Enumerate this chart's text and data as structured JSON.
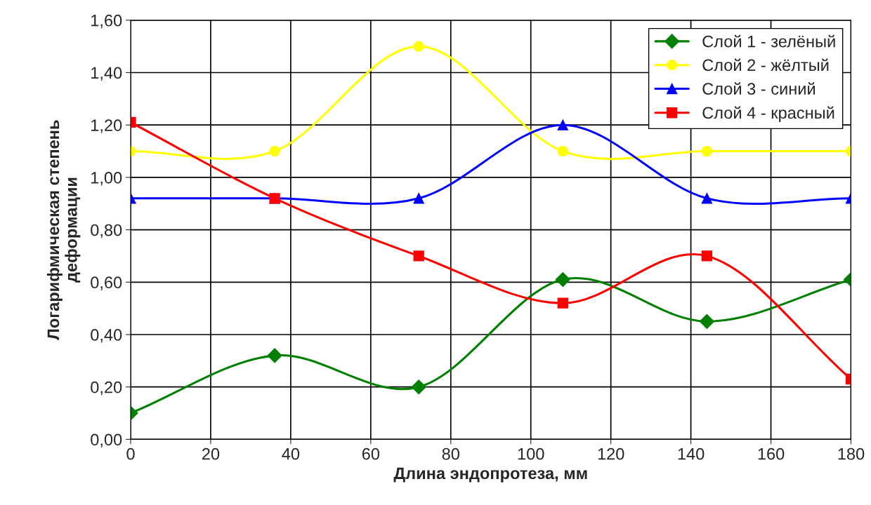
{
  "chart_data": {
    "type": "line",
    "xlabel": "Длина эндопротеза, мм",
    "ylabel": "Логарифмическая степень\nдеформации",
    "x": [
      0,
      36,
      72,
      108,
      144,
      180
    ],
    "series": [
      {
        "name": "Слой 1 - зелёный",
        "color": "#008000",
        "marker": "diamond",
        "values": [
          0.1,
          0.32,
          0.2,
          0.61,
          0.45,
          0.61
        ]
      },
      {
        "name": "Слой 2 - жёлтый",
        "color": "#ffff00",
        "marker": "circle",
        "values": [
          1.1,
          1.1,
          1.5,
          1.1,
          1.1,
          1.1
        ]
      },
      {
        "name": "Слой 3 - синий",
        "color": "#0000ff",
        "marker": "triangle",
        "values": [
          0.92,
          0.92,
          0.92,
          1.2,
          0.92,
          0.92
        ]
      },
      {
        "name": "Слой 4 - красный",
        "color": "#ff0000",
        "marker": "square",
        "values": [
          1.21,
          0.92,
          0.7,
          0.52,
          0.7,
          0.23
        ]
      }
    ],
    "xlim": [
      0,
      180
    ],
    "xticks": [
      0,
      20,
      40,
      60,
      80,
      100,
      120,
      140,
      160,
      180
    ],
    "ylim": [
      0,
      1.6
    ],
    "yticks": [
      {
        "value": 0,
        "label": "0,00"
      },
      {
        "value": 0.2,
        "label": "0,20"
      },
      {
        "value": 0.4,
        "label": "0,40"
      },
      {
        "value": 0.6,
        "label": "0,60"
      },
      {
        "value": 0.8,
        "label": "0,80"
      },
      {
        "value": 1.0,
        "label": "1,00"
      },
      {
        "value": 1.2,
        "label": "1,20"
      },
      {
        "value": 1.4,
        "label": "1,40"
      },
      {
        "value": 1.6,
        "label": "1,60"
      }
    ],
    "grid": true,
    "legend": "top right",
    "line_style": "solid"
  }
}
